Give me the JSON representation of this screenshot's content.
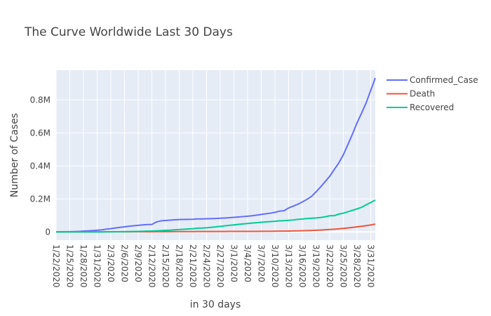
{
  "chart_data": {
    "type": "line",
    "title": "The Curve Worldwide Last 30 Days",
    "xlabel": "in 30 days",
    "ylabel": "Number of Cases",
    "x": [
      "1/22/2020",
      "1/23/2020",
      "1/24/2020",
      "1/25/2020",
      "1/26/2020",
      "1/27/2020",
      "1/28/2020",
      "1/29/2020",
      "1/30/2020",
      "1/31/2020",
      "2/1/2020",
      "2/2/2020",
      "2/3/2020",
      "2/4/2020",
      "2/5/2020",
      "2/6/2020",
      "2/7/2020",
      "2/8/2020",
      "2/9/2020",
      "2/10/2020",
      "2/11/2020",
      "2/12/2020",
      "2/13/2020",
      "2/14/2020",
      "2/15/2020",
      "2/16/2020",
      "2/17/2020",
      "2/18/2020",
      "2/19/2020",
      "2/20/2020",
      "2/21/2020",
      "2/22/2020",
      "2/23/2020",
      "2/24/2020",
      "2/25/2020",
      "2/26/2020",
      "2/27/2020",
      "2/28/2020",
      "2/29/2020",
      "3/1/2020",
      "3/2/2020",
      "3/3/2020",
      "3/4/2020",
      "3/5/2020",
      "3/6/2020",
      "3/7/2020",
      "3/8/2020",
      "3/9/2020",
      "3/10/2020",
      "3/11/2020",
      "3/12/2020",
      "3/13/2020",
      "3/14/2020",
      "3/15/2020",
      "3/16/2020",
      "3/17/2020",
      "3/18/2020",
      "3/19/2020",
      "3/20/2020",
      "3/21/2020",
      "3/22/2020",
      "3/23/2020",
      "3/24/2020",
      "3/25/2020",
      "3/26/2020",
      "3/27/2020",
      "3/28/2020",
      "3/29/2020",
      "3/30/2020",
      "3/31/2020",
      "4/1/2020"
    ],
    "x_tick_labels": [
      "1/22/2020",
      "1/25/2020",
      "1/28/2020",
      "1/31/2020",
      "2/3/2020",
      "2/6/2020",
      "2/9/2020",
      "2/12/2020",
      "2/15/2020",
      "2/18/2020",
      "2/21/2020",
      "2/24/2020",
      "2/27/2020",
      "3/1/2020",
      "3/4/2020",
      "3/7/2020",
      "3/10/2020",
      "3/13/2020",
      "3/16/2020",
      "3/19/2020",
      "3/22/2020",
      "3/25/2020",
      "3/28/2020",
      "3/31/2020"
    ],
    "y_tick_values": [
      0,
      200000,
      400000,
      600000,
      800000
    ],
    "y_tick_labels": [
      "0",
      "0.2M",
      "0.4M",
      "0.6M",
      "0.8M"
    ],
    "ylim": [
      -50000,
      980000
    ],
    "grid": true,
    "legend_position": "top-right",
    "series": [
      {
        "name": "Confirmed_Case",
        "color": "#636efa",
        "values": [
          555,
          654,
          941,
          1434,
          2118,
          2927,
          5578,
          6166,
          8234,
          9927,
          12038,
          16787,
          19881,
          23892,
          27635,
          30794,
          34391,
          37120,
          40150,
          42762,
          44802,
          45221,
          60368,
          66885,
          69030,
          71224,
          73258,
          75136,
          75639,
          76197,
          76819,
          78572,
          78958,
          79561,
          80406,
          81388,
          82746,
          84112,
          86011,
          88369,
          90306,
          92840,
          95120,
          97886,
          101801,
          105847,
          109821,
          113590,
          118620,
          125875,
          128352,
          145205,
          156101,
          167454,
          181574,
          197102,
          214821,
          242570,
          272208,
          304507,
          336953,
          378231,
          418045,
          467653,
          529591,
          593291,
          660706,
          720117,
          782365,
          857487,
          932605
        ]
      },
      {
        "name": "Death",
        "color": "#ef553b",
        "values": [
          17,
          18,
          26,
          42,
          56,
          82,
          131,
          133,
          171,
          213,
          259,
          362,
          426,
          492,
          564,
          634,
          719,
          806,
          906,
          1013,
          1113,
          1118,
          1371,
          1523,
          1666,
          1770,
          1868,
          2007,
          2122,
          2247,
          2251,
          2458,
          2469,
          2629,
          2708,
          2770,
          2814,
          2872,
          2941,
          2996,
          3085,
          3160,
          3254,
          3348,
          3460,
          3558,
          3802,
          3988,
          4262,
          4615,
          4720,
          5404,
          5819,
          6440,
          7126,
          7905,
          8733,
          9867,
          11299,
          12973,
          14651,
          16505,
          18625,
          21181,
          23970,
          27198,
          30652,
          33925,
          37582,
          42107,
          47180
        ]
      },
      {
        "name": "Recovered",
        "color": "#00cc96",
        "values": [
          28,
          30,
          36,
          39,
          52,
          61,
          107,
          126,
          143,
          222,
          284,
          472,
          623,
          852,
          1124,
          1487,
          2011,
          2616,
          3244,
          3946,
          4683,
          5150,
          6295,
          8058,
          9395,
          10865,
          12583,
          14352,
          16121,
          18177,
          18890,
          22886,
          23394,
          25227,
          27905,
          30384,
          33277,
          36711,
          39782,
          42716,
          45602,
          48228,
          51170,
          53796,
          55865,
          58358,
          60694,
          62494,
          64404,
          67003,
          68324,
          70251,
          72624,
          76034,
          78088,
          80840,
          83207,
          84854,
          87256,
          91499,
          97882,
          98351,
          107990,
          113604,
          122131,
          130914,
          139415,
          149082,
          164566,
          178034,
          193177
        ]
      }
    ]
  }
}
